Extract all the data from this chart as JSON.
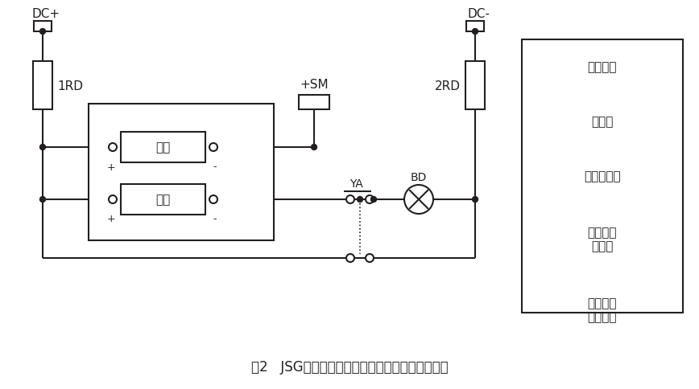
{
  "title": "图2   JSG系列静态闪光继电器应用外部接线参考图",
  "bg_color": "#ffffff",
  "line_color": "#231f20",
  "dc_plus_label": "DC+",
  "dc_minus_label": "DC-",
  "rd1_label": "1RD",
  "rd2_label": "2RD",
  "sm_label": "+SM",
  "ya_label": "YA",
  "bd_label": "BD",
  "qidong_label": "启动",
  "dianyuan_label": "电源",
  "legend_rows": [
    "直流母线",
    "熔断器",
    "闪光小母线",
    "静态闪光\n断电器",
    "试验按钮\n及信号灯"
  ],
  "legend_row_lines": [
    1,
    1,
    1,
    2,
    2
  ]
}
